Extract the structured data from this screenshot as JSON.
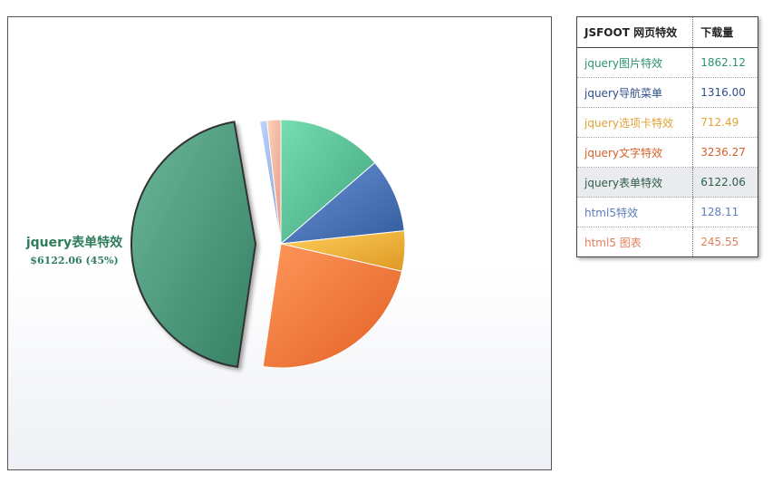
{
  "chart_data": {
    "type": "pie",
    "title": "",
    "categories": [
      "jquery图片特效",
      "jquery导航菜单",
      "jquery选项卡特效",
      "jquery文字特效",
      "jquery表单特效",
      "html5特效",
      "html5 图表"
    ],
    "values": [
      1862.12,
      1316.0,
      712.49,
      3236.27,
      6122.06,
      128.11,
      245.55
    ],
    "colors": [
      "#4aaf85",
      "#3d66a8",
      "#e8a22e",
      "#ec6a2e",
      "#3f8a6d",
      "#8fa9d9",
      "#eea58e"
    ],
    "text_colors": [
      "#2e9272",
      "#2f4f8a",
      "#e0a235",
      "#d6602b",
      "#2e5e48",
      "#5a7fb8",
      "#e07f5a"
    ],
    "exploded": "jquery表单特效",
    "callout": {
      "name": "jquery表单特效",
      "value": "$6122.06 (45%)"
    }
  },
  "legend": {
    "header_name": "JSFOOT 网页特效",
    "header_value": "下载量",
    "rows": [
      {
        "name": "jquery图片特效",
        "value": "1862.12"
      },
      {
        "name": "jquery导航菜单",
        "value": "1316.00"
      },
      {
        "name": "jquery选项卡特效",
        "value": "712.49"
      },
      {
        "name": "jquery文字特效",
        "value": "3236.27"
      },
      {
        "name": "jquery表单特效",
        "value": "6122.06"
      },
      {
        "name": "html5特效",
        "value": "128.11"
      },
      {
        "name": "html5 图表",
        "value": "245.55"
      }
    ],
    "highlighted_row": 4
  }
}
